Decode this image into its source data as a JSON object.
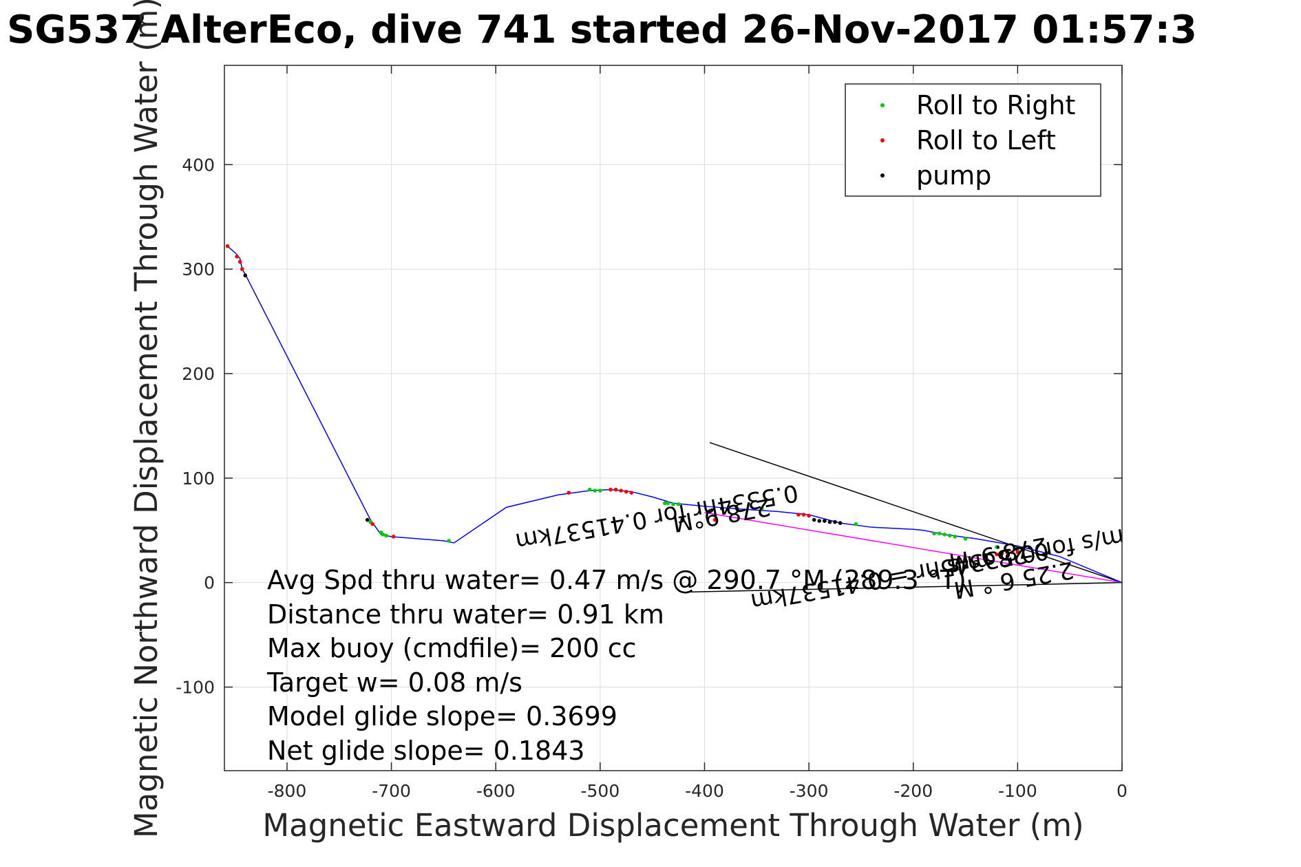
{
  "chart_data": {
    "type": "line",
    "title": "SG537 AlterEco, dive 741 started 26-Nov-2017 01:57:3",
    "xlabel": "Magnetic Eastward Displacement Through Water (m)",
    "ylabel": "Magnetic Northward Displacement Through Water (m)",
    "xlim": [
      -860,
      0
    ],
    "ylim": [
      -180,
      495
    ],
    "xticks": [
      -800,
      -700,
      -600,
      -500,
      -400,
      -300,
      -200,
      -100,
      0
    ],
    "yticks": [
      -100,
      0,
      100,
      200,
      300,
      400
    ],
    "xtick_labels": [
      "-800",
      "-700",
      "-600",
      "-500",
      "-400",
      "-300",
      "-200",
      "-100",
      "0"
    ],
    "ytick_labels": [
      "-100",
      "0",
      "100",
      "200",
      "300",
      "400"
    ],
    "grid": true,
    "legend_position": "top-right",
    "legend": [
      {
        "label": "Roll to Right",
        "color": "#00cc00"
      },
      {
        "label": "Roll to Left",
        "color": "#ff0000"
      },
      {
        "label": "pump",
        "color": "#000000"
      }
    ],
    "colors": {
      "track": "#0000ff",
      "roll_right": "#00cc00",
      "roll_left": "#ff0000",
      "pump": "#000000",
      "current_line": "#ff00ff",
      "grid": "#dcdcdc",
      "axes": "#262626"
    },
    "series": [
      {
        "name": "track",
        "x": [
          0,
          -60,
          -100,
          -140,
          -170,
          -190,
          -200,
          -240,
          -270,
          -300,
          -330,
          -360,
          -400,
          -430,
          -450,
          -470,
          -490,
          -510,
          -540,
          -590,
          -640,
          -650,
          -700,
          -710,
          -720,
          -840,
          -843,
          -845,
          -849,
          -857
        ],
        "y": [
          0,
          25,
          35,
          42,
          46,
          50,
          51,
          53,
          57,
          65,
          68,
          70,
          73,
          76,
          82,
          87,
          89,
          88,
          84,
          72,
          38,
          40,
          44,
          46,
          60,
          295,
          300,
          310,
          315,
          322
        ]
      },
      {
        "name": "Roll to Right",
        "x": [
          -100,
          -120,
          -150,
          -160,
          -165,
          -170,
          -175,
          -180,
          -255,
          -345,
          -425,
          -430,
          -435,
          -438,
          -500,
          -505,
          -510,
          -645,
          -705,
          -708,
          -710,
          -720
        ],
        "y": [
          30,
          34,
          42,
          44,
          45,
          46,
          47,
          47,
          56,
          71,
          75,
          75,
          76,
          76,
          88,
          88,
          89,
          40,
          45,
          46,
          48,
          58
        ]
      },
      {
        "name": "Roll to Left",
        "x": [
          -100,
          -105,
          -110,
          -115,
          -120,
          -300,
          -305,
          -310,
          -390,
          -470,
          -475,
          -480,
          -485,
          -490,
          -530,
          -698,
          -718,
          -843,
          -845,
          -848,
          -857
        ],
        "y": [
          29,
          29,
          29,
          28,
          27,
          64,
          65,
          65,
          60,
          86,
          87,
          88,
          89,
          89,
          86,
          44,
          56,
          300,
          307,
          312,
          322
        ]
      },
      {
        "name": "pump",
        "x": [
          -270,
          -275,
          -280,
          -285,
          -290,
          -295,
          -723,
          -840
        ],
        "y": [
          57,
          58,
          58,
          59,
          59,
          60,
          60,
          294
        ]
      },
      {
        "name": "current",
        "x": [
          0,
          -400
        ],
        "y": [
          0,
          67
        ]
      }
    ],
    "reference_lines": [
      {
        "x": [
          0,
          -395
        ],
        "y": [
          0,
          134
        ]
      },
      {
        "x": [
          0,
          -415
        ],
        "y": [
          0,
          -9
        ]
      }
    ],
    "annotations": [
      {
        "text": "0.5334hr for 0.41537km",
        "x": -447,
        "y": 70,
        "rotation_deg": 170
      },
      {
        "text": "0.28 m/s",
        "x": -120,
        "y": 30,
        "rotation_deg": 170
      },
      {
        "text": "278.9°M",
        "x": -385,
        "y": 72,
        "rotation_deg": 170
      },
      {
        "text": "0.21 m/s for 0.53345hr = 0.41537km",
        "x": -150,
        "y": 25,
        "rotation_deg": 170
      },
      {
        "text": "278.9°M",
        "x": -120,
        "y": 35,
        "rotation_deg": 170
      },
      {
        "text": "2.25 6 ° M",
        "x": -105,
        "y": 10,
        "rotation_deg": 170
      }
    ],
    "stats": [
      "Avg Spd thru water=  0.47 m/s @ 290.7 °M (289.3 °T)",
      "Distance thru water=  0.91 km",
      "Max buoy (cmdfile)= 200 cc",
      "Target w= 0.08 m/s",
      "Model glide slope= 0.3699",
      "Net glide slope= 0.1843"
    ]
  }
}
